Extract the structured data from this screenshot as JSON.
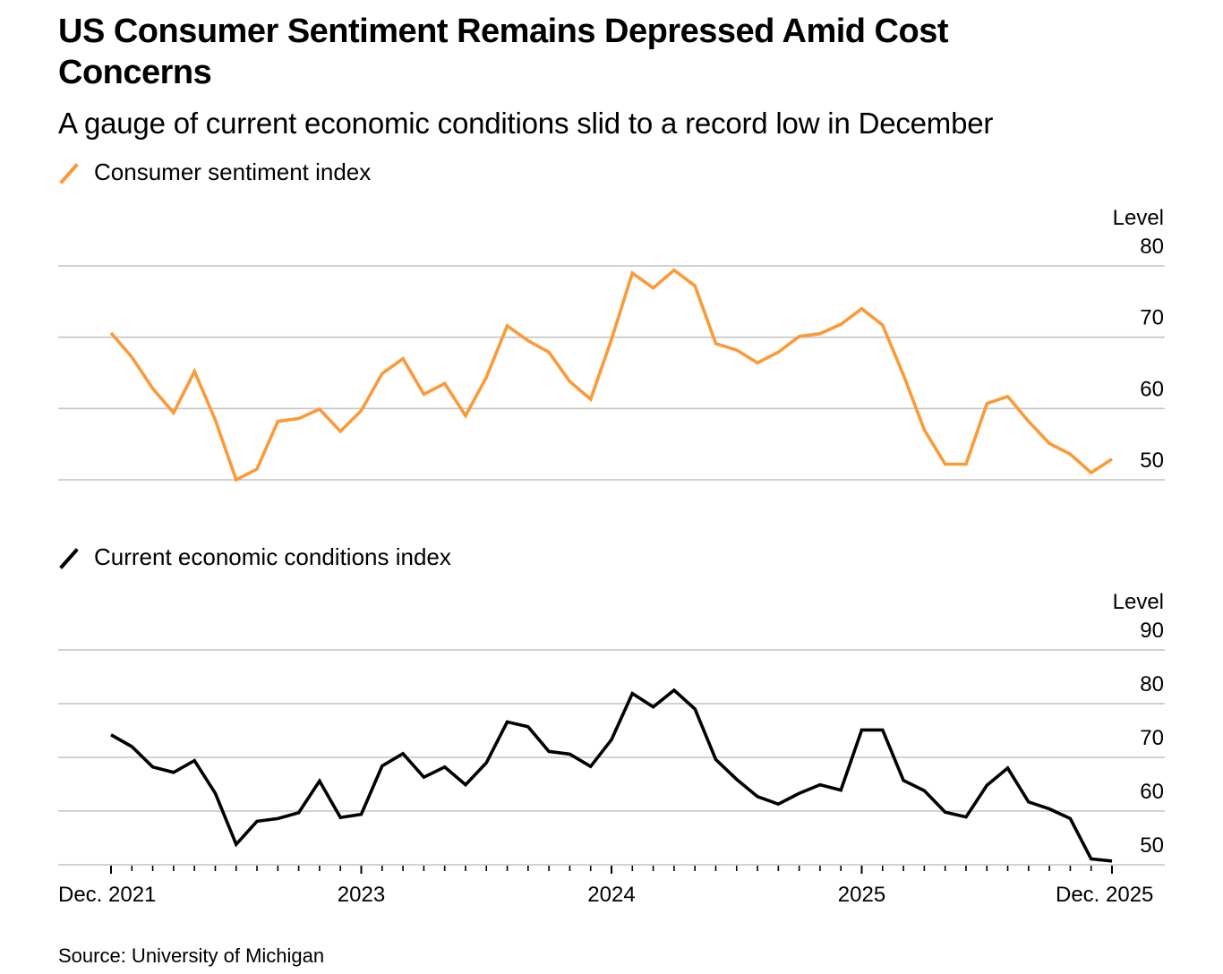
{
  "header": {
    "title": "US Consumer Sentiment Remains Depressed Amid Cost Concerns",
    "subtitle": "A gauge of current economic conditions slid to a record low in December"
  },
  "colors": {
    "sentiment": "#fb9a38",
    "conditions": "#000000",
    "grid": "#c4c4c4"
  },
  "footer": {
    "source": "Source: University of Michigan"
  },
  "chart_data": [
    {
      "type": "line",
      "title": "Consumer sentiment index",
      "legend": "Consumer sentiment index",
      "ylabel": "Level",
      "ylim": [
        50,
        80
      ],
      "yticks": [
        80,
        70,
        60,
        50
      ],
      "grid": true,
      "x": [
        "Dec. 2021",
        "Jan. 2022",
        "Feb. 2022",
        "Mar. 2022",
        "Apr. 2022",
        "May 2022",
        "Jun. 2022",
        "Jul. 2022",
        "Aug. 2022",
        "Sep. 2022",
        "Oct. 2022",
        "Nov. 2022",
        "Dec. 2022",
        "Jan. 2023",
        "Feb. 2023",
        "Mar. 2023",
        "Apr. 2023",
        "May 2023",
        "Jun. 2023",
        "Jul. 2023",
        "Aug. 2023",
        "Sep. 2023",
        "Oct. 2023",
        "Nov. 2023",
        "Dec. 2023",
        "Jan. 2024",
        "Feb. 2024",
        "Mar. 2024",
        "Apr. 2024",
        "May 2024",
        "Jun. 2024",
        "Jul. 2024",
        "Aug. 2024",
        "Sep. 2024",
        "Oct. 2024",
        "Nov. 2024",
        "Dec. 2024",
        "Jan. 2025",
        "Feb. 2025",
        "Mar. 2025",
        "Apr. 2025",
        "May 2025",
        "Jun. 2025",
        "Jul. 2025",
        "Aug. 2025",
        "Sep. 2025",
        "Oct. 2025",
        "Nov. 2025",
        "Dec. 2025"
      ],
      "series": [
        {
          "name": "Consumer sentiment index",
          "values": [
            70.6,
            67.2,
            62.8,
            59.4,
            65.2,
            58.4,
            50.0,
            51.5,
            58.2,
            58.6,
            59.9,
            56.8,
            59.7,
            64.9,
            67.0,
            62.0,
            63.5,
            59.0,
            64.4,
            71.6,
            69.5,
            67.9,
            63.8,
            61.3,
            69.7,
            79.0,
            76.9,
            79.4,
            77.2,
            69.1,
            68.2,
            66.4,
            67.9,
            70.1,
            70.5,
            71.8,
            74.0,
            71.7,
            64.7,
            57.0,
            52.2,
            52.2,
            60.7,
            61.7,
            58.2,
            55.1,
            53.6,
            51.0,
            52.9
          ]
        }
      ]
    },
    {
      "type": "line",
      "title": "Current economic conditions index",
      "legend": "Current economic conditions index",
      "ylabel": "Level",
      "ylim": [
        50,
        90
      ],
      "yticks": [
        90,
        80,
        70,
        60,
        50
      ],
      "grid": true,
      "x": [
        "Dec. 2021",
        "Jan. 2022",
        "Feb. 2022",
        "Mar. 2022",
        "Apr. 2022",
        "May 2022",
        "Jun. 2022",
        "Jul. 2022",
        "Aug. 2022",
        "Sep. 2022",
        "Oct. 2022",
        "Nov. 2022",
        "Dec. 2022",
        "Jan. 2023",
        "Feb. 2023",
        "Mar. 2023",
        "Apr. 2023",
        "May 2023",
        "Jun. 2023",
        "Jul. 2023",
        "Aug. 2023",
        "Sep. 2023",
        "Oct. 2023",
        "Nov. 2023",
        "Dec. 2023",
        "Jan. 2024",
        "Feb. 2024",
        "Mar. 2024",
        "Apr. 2024",
        "May 2024",
        "Jun. 2024",
        "Jul. 2024",
        "Aug. 2024",
        "Sep. 2024",
        "Oct. 2024",
        "Nov. 2024",
        "Dec. 2024",
        "Jan. 2025",
        "Feb. 2025",
        "Mar. 2025",
        "Apr. 2025",
        "May 2025",
        "Jun. 2025",
        "Jul. 2025",
        "Aug. 2025",
        "Sep. 2025",
        "Oct. 2025",
        "Nov. 2025",
        "Dec. 2025"
      ],
      "xtick_labels": [
        {
          "index": 0,
          "label": "Dec. 2021"
        },
        {
          "index": 12,
          "label": "2023"
        },
        {
          "index": 24,
          "label": "2024"
        },
        {
          "index": 36,
          "label": "2025"
        },
        {
          "index": 48,
          "label": "Dec. 2025"
        }
      ],
      "series": [
        {
          "name": "Current economic conditions index",
          "values": [
            74.2,
            72.0,
            68.2,
            67.2,
            69.4,
            63.3,
            53.8,
            58.1,
            58.6,
            59.7,
            65.6,
            58.8,
            59.4,
            68.4,
            70.7,
            66.3,
            68.2,
            64.9,
            69.0,
            76.6,
            75.7,
            71.1,
            70.6,
            68.3,
            73.3,
            81.9,
            79.4,
            82.5,
            79.0,
            69.6,
            65.9,
            62.7,
            61.3,
            63.3,
            64.9,
            63.9,
            75.1,
            75.1,
            65.7,
            63.8,
            59.8,
            58.9,
            64.8,
            68.0,
            61.7,
            60.4,
            58.6,
            51.1,
            50.7
          ]
        }
      ]
    }
  ]
}
